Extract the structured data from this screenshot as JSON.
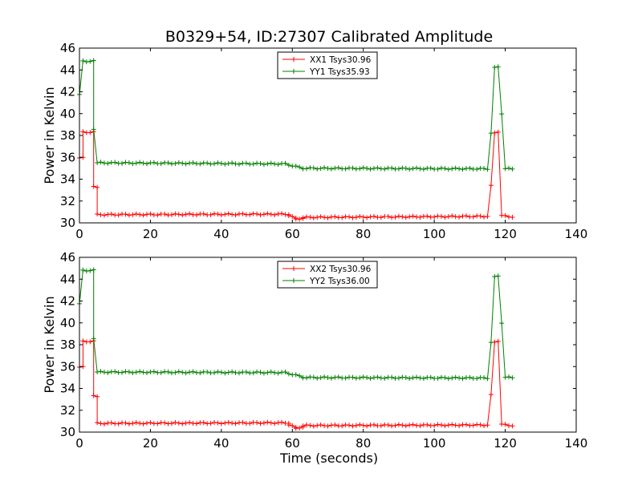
{
  "chart_data": {
    "type": "line",
    "title": "B0329+54, ID:27307 Calibrated Amplitude",
    "xlabel": "Time (seconds)",
    "xlim": [
      0,
      140
    ],
    "xticks": [
      0,
      20,
      40,
      60,
      80,
      100,
      120,
      140
    ],
    "ylim": [
      30,
      46
    ],
    "yticks": [
      30,
      32,
      34,
      36,
      38,
      40,
      42,
      44,
      46
    ],
    "legend_position": "top-center",
    "marker": "plus",
    "panels": [
      {
        "ylabel": "Power in Kelvin",
        "series": [
          {
            "name": "XX1 Tsys30.96",
            "color": "#ff0000",
            "segments": [
              {
                "x0": 0,
                "x1": 1,
                "v0": 36.0,
                "v1": 36.0
              },
              {
                "x0": 1,
                "x1": 4,
                "v0": 38.3,
                "v1": 38.3
              },
              {
                "x0": 4,
                "x1": 5,
                "v0": 33.3,
                "v1": 33.3
              },
              {
                "x0": 5,
                "x1": 59,
                "v0": 30.75,
                "v1": 30.8
              },
              {
                "x0": 59,
                "x1": 61,
                "v0": 30.7,
                "v1": 30.4
              },
              {
                "x0": 61,
                "x1": 63,
                "v0": 30.3,
                "v1": 30.45
              },
              {
                "x0": 63,
                "x1": 115,
                "v0": 30.5,
                "v1": 30.6
              },
              {
                "x0": 116,
                "x1": 116,
                "v0": 33.5,
                "v1": 33.5
              },
              {
                "x0": 117,
                "x1": 118,
                "v0": 38.3,
                "v1": 38.3
              },
              {
                "x0": 119,
                "x1": 122,
                "v0": 30.65,
                "v1": 30.55
              }
            ]
          },
          {
            "name": "YY1 Tsys35.93",
            "color": "#008000",
            "segments": [
              {
                "x0": 0,
                "x1": 0,
                "v0": 41.8,
                "v1": 41.8
              },
              {
                "x0": 1,
                "x1": 4,
                "v0": 44.8,
                "v1": 44.8
              },
              {
                "x0": 4,
                "x1": 4,
                "v0": 38.5,
                "v1": 38.5
              },
              {
                "x0": 5,
                "x1": 58,
                "v0": 35.5,
                "v1": 35.4
              },
              {
                "x0": 58,
                "x1": 63,
                "v0": 35.4,
                "v1": 35.0
              },
              {
                "x0": 63,
                "x1": 115,
                "v0": 35.0,
                "v1": 34.95
              },
              {
                "x0": 116,
                "x1": 116,
                "v0": 38.2,
                "v1": 38.2
              },
              {
                "x0": 117,
                "x1": 118,
                "v0": 44.3,
                "v1": 44.3
              },
              {
                "x0": 119,
                "x1": 119,
                "v0": 40.0,
                "v1": 40.0
              },
              {
                "x0": 120,
                "x1": 122,
                "v0": 34.95,
                "v1": 34.95
              }
            ]
          }
        ]
      },
      {
        "ylabel": "Power in Kelvin",
        "series": [
          {
            "name": "XX2 Tsys30.96",
            "color": "#ff0000",
            "segments": [
              {
                "x0": 0,
                "x1": 1,
                "v0": 36.0,
                "v1": 36.0
              },
              {
                "x0": 1,
                "x1": 4,
                "v0": 38.3,
                "v1": 38.3
              },
              {
                "x0": 4,
                "x1": 5,
                "v0": 33.3,
                "v1": 33.3
              },
              {
                "x0": 5,
                "x1": 59,
                "v0": 30.8,
                "v1": 30.85
              },
              {
                "x0": 59,
                "x1": 61,
                "v0": 30.7,
                "v1": 30.4
              },
              {
                "x0": 61,
                "x1": 63,
                "v0": 30.3,
                "v1": 30.5
              },
              {
                "x0": 63,
                "x1": 115,
                "v0": 30.6,
                "v1": 30.65
              },
              {
                "x0": 116,
                "x1": 116,
                "v0": 33.5,
                "v1": 33.5
              },
              {
                "x0": 117,
                "x1": 118,
                "v0": 38.3,
                "v1": 38.3
              },
              {
                "x0": 119,
                "x1": 122,
                "v0": 30.7,
                "v1": 30.6
              }
            ]
          },
          {
            "name": "YY2 Tsys36.00",
            "color": "#008000",
            "segments": [
              {
                "x0": 0,
                "x1": 0,
                "v0": 41.8,
                "v1": 41.8
              },
              {
                "x0": 1,
                "x1": 4,
                "v0": 44.8,
                "v1": 44.8
              },
              {
                "x0": 4,
                "x1": 4,
                "v0": 38.5,
                "v1": 38.5
              },
              {
                "x0": 5,
                "x1": 58,
                "v0": 35.5,
                "v1": 35.45
              },
              {
                "x0": 58,
                "x1": 63,
                "v0": 35.45,
                "v1": 35.05
              },
              {
                "x0": 63,
                "x1": 115,
                "v0": 35.0,
                "v1": 34.95
              },
              {
                "x0": 116,
                "x1": 116,
                "v0": 38.2,
                "v1": 38.2
              },
              {
                "x0": 117,
                "x1": 118,
                "v0": 44.3,
                "v1": 44.3
              },
              {
                "x0": 119,
                "x1": 119,
                "v0": 40.0,
                "v1": 40.0
              },
              {
                "x0": 120,
                "x1": 122,
                "v0": 35.0,
                "v1": 35.0
              }
            ]
          }
        ]
      }
    ]
  }
}
